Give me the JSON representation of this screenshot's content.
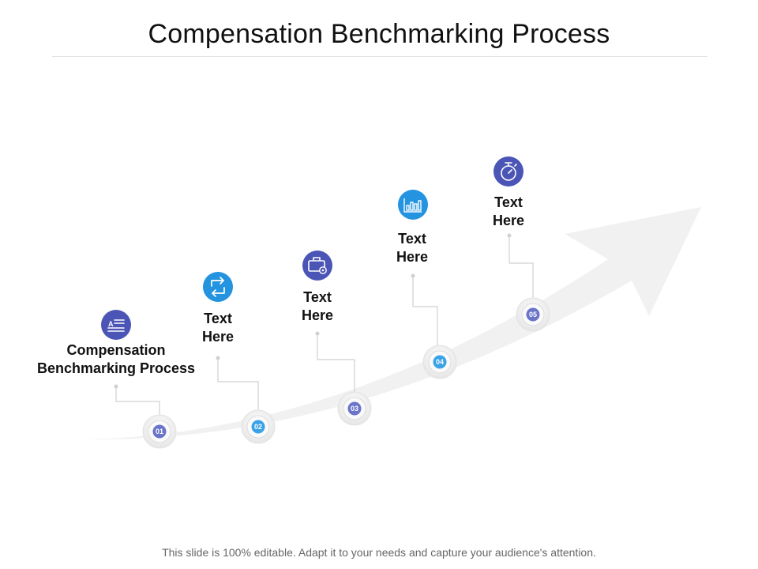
{
  "title": "Compensation Benchmarking Process",
  "footer": "This slide is 100% editable. Adapt it to your needs and capture your audience's attention.",
  "colors": {
    "purple": "#4b55b5",
    "blue": "#2493e0",
    "arrow": "#f1f1f1"
  },
  "steps": [
    {
      "number": "01",
      "label_line1": "Compensation",
      "label_line2": "Benchmarking Process",
      "icon": "list-icon",
      "color": "#4b55b5"
    },
    {
      "number": "02",
      "label_line1": "Text",
      "label_line2": "Here",
      "icon": "swap-arrows-icon",
      "color": "#2493e0"
    },
    {
      "number": "03",
      "label_line1": "Text",
      "label_line2": "Here",
      "icon": "briefcase-gear-icon",
      "color": "#4b55b5"
    },
    {
      "number": "04",
      "label_line1": "Text",
      "label_line2": "Here",
      "icon": "bar-chart-icon",
      "color": "#2493e0"
    },
    {
      "number": "05",
      "label_line1": "Text",
      "label_line2": "Here",
      "icon": "stopwatch-icon",
      "color": "#4b55b5"
    }
  ]
}
